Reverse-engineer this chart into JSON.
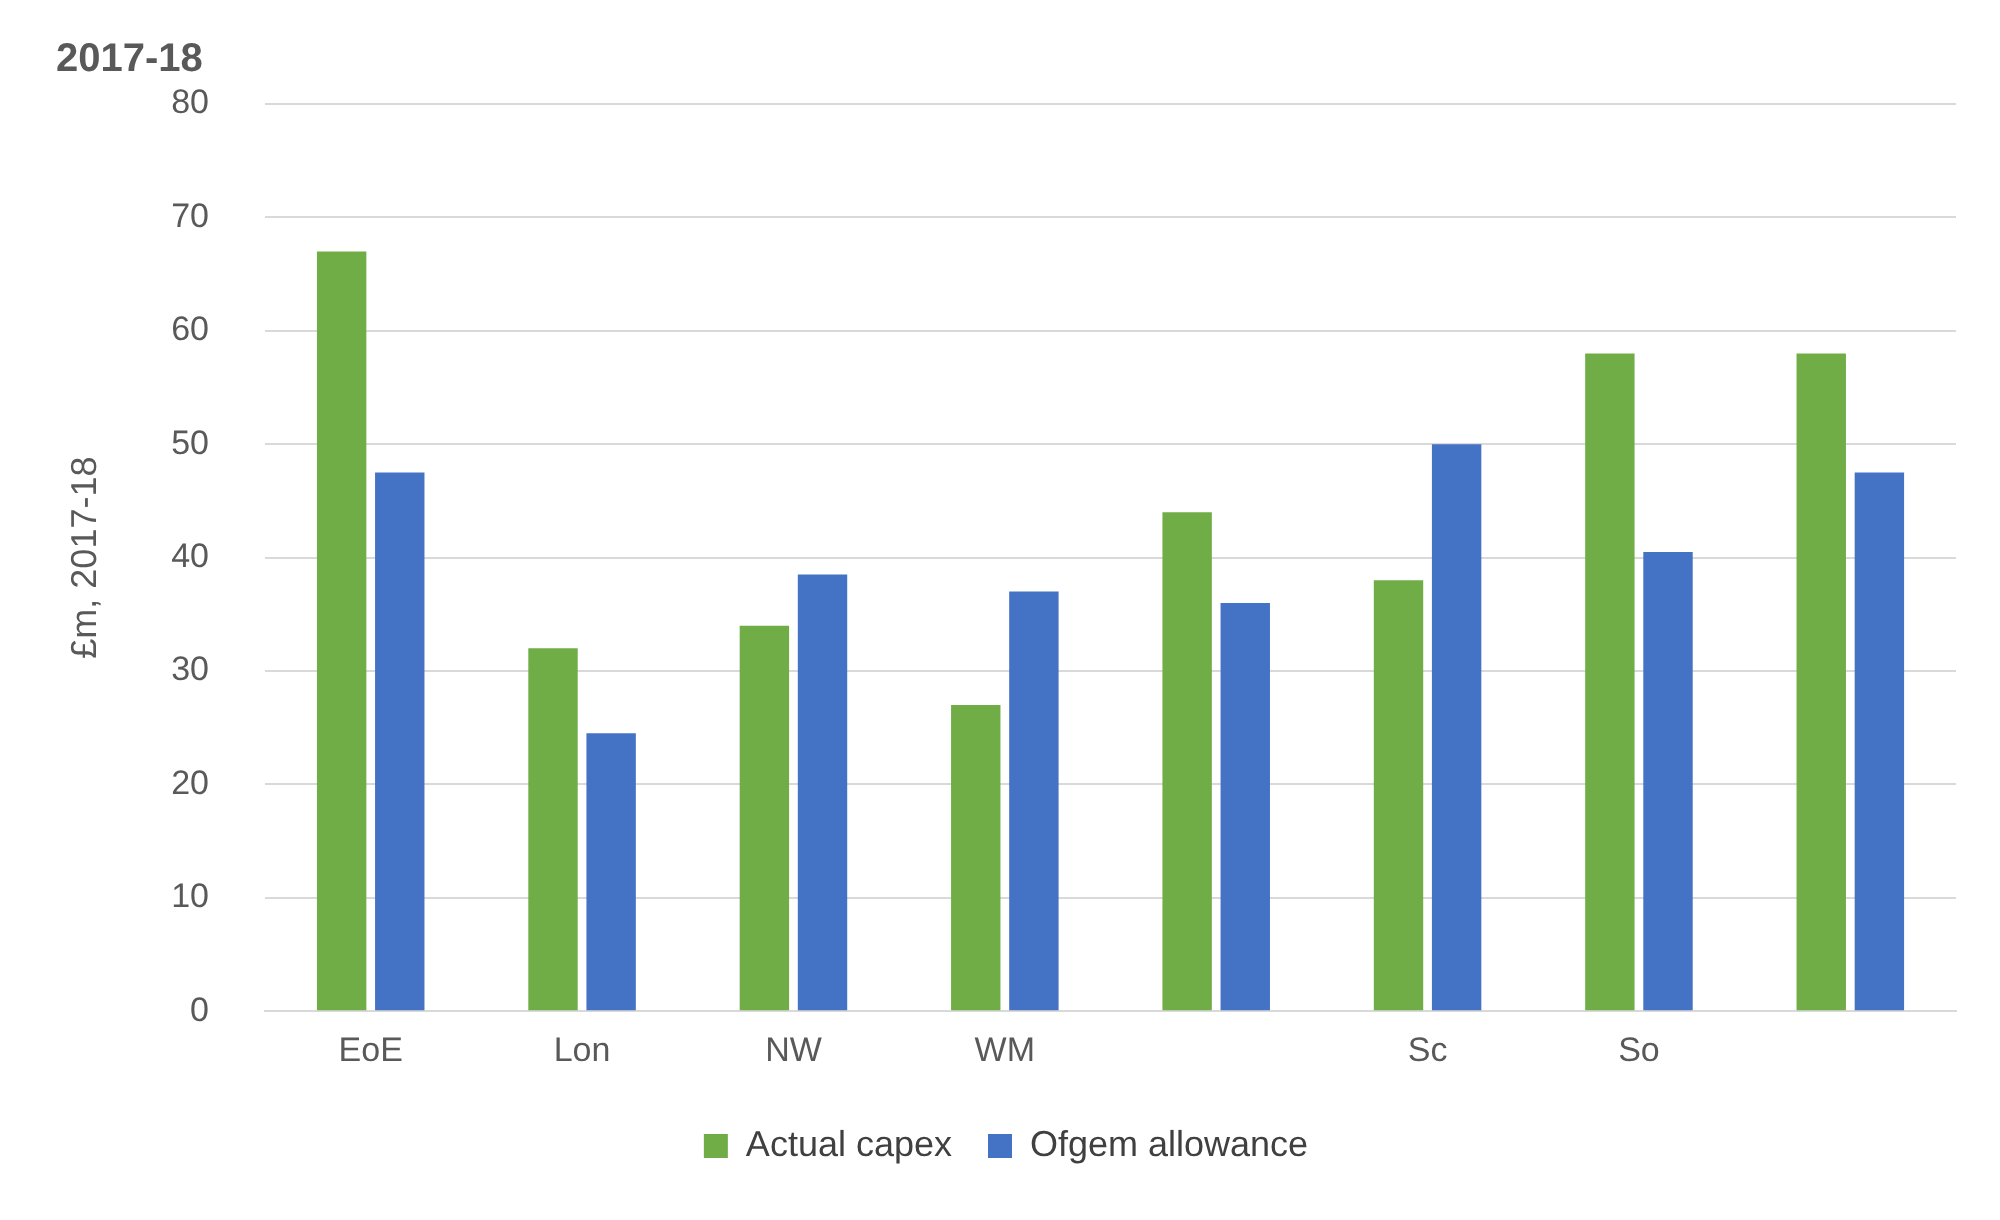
{
  "chart_data": {
    "type": "bar",
    "title": "2017-18",
    "ylabel": "£m, 2017-18",
    "categories": [
      "EoE",
      "Lon",
      "NW",
      "WM",
      null,
      "Sc",
      "So",
      null
    ],
    "series": [
      {
        "name": "Actual capex",
        "color": "#70ad47",
        "values": [
          67,
          32,
          34,
          27,
          44,
          38,
          58,
          58
        ]
      },
      {
        "name": "Ofgem allowance",
        "color": "#4472c4",
        "values": [
          47.5,
          24.5,
          38.5,
          37,
          36,
          50,
          40.5,
          47.5
        ]
      }
    ],
    "ylim": [
      0,
      80
    ],
    "yticks": [
      0,
      10,
      20,
      30,
      40,
      50,
      60,
      70,
      80
    ],
    "grid": "y",
    "legend": "bottom"
  }
}
